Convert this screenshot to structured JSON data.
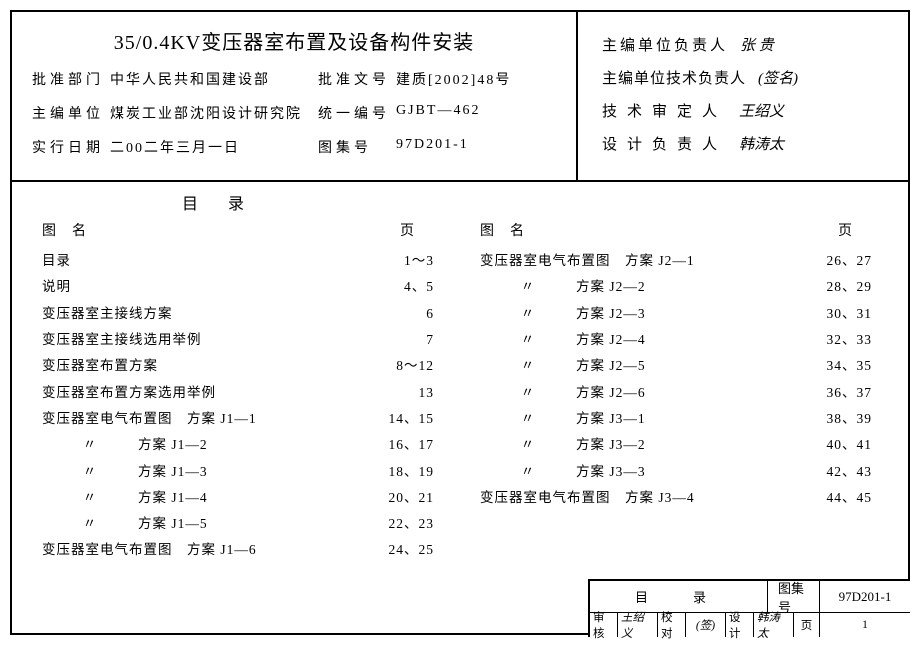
{
  "title": "35/0.4KV变压器室布置及设备构件安装",
  "meta": {
    "approve_dept_label": "批准部门",
    "approve_dept": "中华人民共和国建设部",
    "approve_no_label": "批准文号",
    "approve_no": "建质[2002]48号",
    "editor_unit_label": "主编单位",
    "editor_unit": "煤炭工业部沈阳设计研究院",
    "unified_no_label": "统一编号",
    "unified_no": "GJBT—462",
    "effective_date_label": "实行日期",
    "effective_date": "二00二年三月一日",
    "atlas_no_label": "图集号",
    "atlas_no": "97D201-1"
  },
  "signatures": {
    "line1_label": "主编单位负责人",
    "line1_val": "张 贵",
    "line2_label": "主编单位技术负责人",
    "line2_val": "(签名)",
    "line3_label": "技术审定人",
    "line3_val": "王绍义",
    "line4_label": "设计负责人",
    "line4_val": "韩涛太"
  },
  "toc": {
    "heading": "目录",
    "col1_header_name": "图名",
    "col1_header_page": "页",
    "col2_header_name": "图名",
    "col2_header_page": "页",
    "col1": [
      {
        "name": "目录",
        "page": "1～3"
      },
      {
        "name": "说明",
        "page": "4、5"
      },
      {
        "name": "变压器室主接线方案",
        "page": "6"
      },
      {
        "name": "变压器室主接线选用举例",
        "page": "7"
      },
      {
        "name": "变压器室布置方案",
        "page": "8～12"
      },
      {
        "name": "变压器室布置方案选用举例",
        "page": "13"
      },
      {
        "name": "变压器室电气布置图　方案 J1—1",
        "page": "14、15"
      },
      {
        "name": "〃　　　　方案 J1—2",
        "page": "16、17",
        "ditto": true
      },
      {
        "name": "〃　　　　方案 J1—3",
        "page": "18、19",
        "ditto": true
      },
      {
        "name": "〃　　　　方案 J1—4",
        "page": "20、21",
        "ditto": true
      },
      {
        "name": "〃　　　　方案 J1—5",
        "page": "22、23",
        "ditto": true
      },
      {
        "name": "变压器室电气布置图　方案 J1—6",
        "page": "24、25"
      }
    ],
    "col2": [
      {
        "name": "变压器室电气布置图　方案 J2—1",
        "page": "26、27"
      },
      {
        "name": "〃　　　　方案 J2—2",
        "page": "28、29",
        "ditto": true
      },
      {
        "name": "〃　　　　方案 J2—3",
        "page": "30、31",
        "ditto": true
      },
      {
        "name": "〃　　　　方案 J2—4",
        "page": "32、33",
        "ditto": true
      },
      {
        "name": "〃　　　　方案 J2—5",
        "page": "34、35",
        "ditto": true
      },
      {
        "name": "〃　　　　方案 J2—6",
        "page": "36、37",
        "ditto": true
      },
      {
        "name": "〃　　　　方案 J3—1",
        "page": "38、39",
        "ditto": true
      },
      {
        "name": "〃　　　　方案 J3—2",
        "page": "40、41",
        "ditto": true
      },
      {
        "name": "〃　　　　方案 J3—3",
        "page": "42、43",
        "ditto": true
      },
      {
        "name": "变压器室电气布置图　方案 J3—4",
        "page": "44、45"
      }
    ]
  },
  "footer": {
    "toc_label": "目　录",
    "atlas_label": "图集号",
    "atlas_val": "97D201-1",
    "audit_label": "审核",
    "audit_val": "王绍义",
    "check_label": "校对",
    "check_val": "(签)",
    "design_label": "设计",
    "design_val": "韩涛太",
    "page_label": "页",
    "page_val": "1"
  }
}
